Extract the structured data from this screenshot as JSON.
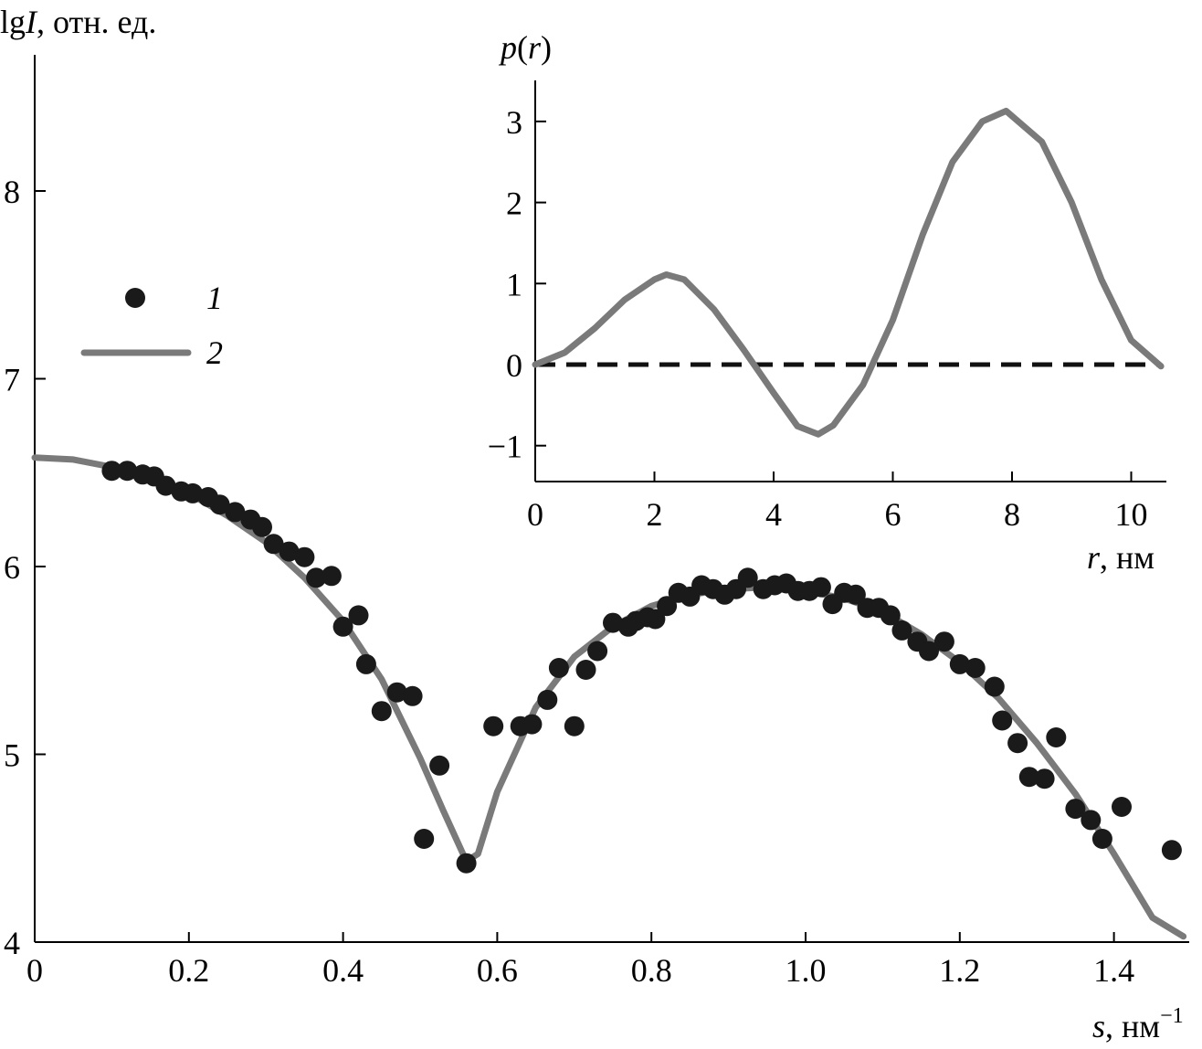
{
  "chart_data": [
    {
      "type": "scatter",
      "ylabel_prefix": "lg",
      "ylabel_var": "I",
      "ylabel_unit": ", отн. ед.",
      "xlabel_var": "s",
      "xlabel_unit": ", нм",
      "xlabel_exp": "−1",
      "xlim": [
        0,
        1.5
      ],
      "ylim": [
        4,
        8.6
      ],
      "x_ticks": [
        "0",
        "0.2",
        "0.4",
        "0.6",
        "0.8",
        "1.0",
        "1.2",
        "1.4"
      ],
      "y_ticks": [
        "4",
        "5",
        "6",
        "7",
        "8"
      ],
      "legend": {
        "position": "left",
        "entries": [
          "1",
          "2"
        ]
      },
      "series": [
        {
          "name": "1",
          "kind": "points",
          "color": "#1a1a1a",
          "points": [
            [
              0.1,
              6.51
            ],
            [
              0.12,
              6.51
            ],
            [
              0.14,
              6.49
            ],
            [
              0.155,
              6.48
            ],
            [
              0.17,
              6.43
            ],
            [
              0.19,
              6.4
            ],
            [
              0.205,
              6.39
            ],
            [
              0.225,
              6.37
            ],
            [
              0.24,
              6.33
            ],
            [
              0.26,
              6.29
            ],
            [
              0.28,
              6.25
            ],
            [
              0.295,
              6.21
            ],
            [
              0.31,
              6.12
            ],
            [
              0.33,
              6.08
            ],
            [
              0.35,
              6.05
            ],
            [
              0.365,
              5.94
            ],
            [
              0.385,
              5.95
            ],
            [
              0.4,
              5.68
            ],
            [
              0.42,
              5.74
            ],
            [
              0.43,
              5.48
            ],
            [
              0.45,
              5.23
            ],
            [
              0.47,
              5.33
            ],
            [
              0.49,
              5.31
            ],
            [
              0.505,
              4.55
            ],
            [
              0.525,
              4.94
            ],
            [
              0.56,
              4.42
            ],
            [
              0.595,
              5.15
            ],
            [
              0.63,
              5.15
            ],
            [
              0.645,
              5.16
            ],
            [
              0.665,
              5.29
            ],
            [
              0.68,
              5.46
            ],
            [
              0.7,
              5.15
            ],
            [
              0.715,
              5.45
            ],
            [
              0.73,
              5.55
            ],
            [
              0.75,
              5.7
            ],
            [
              0.77,
              5.68
            ],
            [
              0.78,
              5.71
            ],
            [
              0.795,
              5.73
            ],
            [
              0.805,
              5.72
            ],
            [
              0.82,
              5.79
            ],
            [
              0.835,
              5.86
            ],
            [
              0.85,
              5.84
            ],
            [
              0.865,
              5.9
            ],
            [
              0.88,
              5.88
            ],
            [
              0.895,
              5.85
            ],
            [
              0.91,
              5.88
            ],
            [
              0.925,
              5.94
            ],
            [
              0.945,
              5.88
            ],
            [
              0.96,
              5.9
            ],
            [
              0.975,
              5.91
            ],
            [
              0.99,
              5.87
            ],
            [
              1.005,
              5.87
            ],
            [
              1.02,
              5.89
            ],
            [
              1.035,
              5.8
            ],
            [
              1.05,
              5.86
            ],
            [
              1.065,
              5.85
            ],
            [
              1.08,
              5.78
            ],
            [
              1.095,
              5.78
            ],
            [
              1.11,
              5.74
            ],
            [
              1.125,
              5.66
            ],
            [
              1.145,
              5.6
            ],
            [
              1.16,
              5.55
            ],
            [
              1.18,
              5.6
            ],
            [
              1.2,
              5.48
            ],
            [
              1.22,
              5.46
            ],
            [
              1.245,
              5.36
            ],
            [
              1.255,
              5.18
            ],
            [
              1.275,
              5.06
            ],
            [
              1.29,
              4.88
            ],
            [
              1.31,
              4.87
            ],
            [
              1.325,
              5.09
            ],
            [
              1.35,
              4.71
            ],
            [
              1.37,
              4.65
            ],
            [
              1.385,
              4.55
            ],
            [
              1.41,
              4.72
            ],
            [
              1.475,
              4.49
            ]
          ]
        },
        {
          "name": "2",
          "kind": "line",
          "color": "#7a7a7a",
          "points": [
            [
              0.0,
              6.58
            ],
            [
              0.05,
              6.57
            ],
            [
              0.1,
              6.53
            ],
            [
              0.15,
              6.47
            ],
            [
              0.2,
              6.39
            ],
            [
              0.25,
              6.27
            ],
            [
              0.3,
              6.13
            ],
            [
              0.35,
              5.94
            ],
            [
              0.4,
              5.71
            ],
            [
              0.45,
              5.4
            ],
            [
              0.5,
              4.98
            ],
            [
              0.53,
              4.7
            ],
            [
              0.56,
              4.43
            ],
            [
              0.575,
              4.47
            ],
            [
              0.6,
              4.8
            ],
            [
              0.65,
              5.25
            ],
            [
              0.7,
              5.52
            ],
            [
              0.75,
              5.68
            ],
            [
              0.8,
              5.79
            ],
            [
              0.85,
              5.85
            ],
            [
              0.9,
              5.88
            ],
            [
              0.95,
              5.89
            ],
            [
              1.0,
              5.87
            ],
            [
              1.05,
              5.83
            ],
            [
              1.1,
              5.76
            ],
            [
              1.15,
              5.64
            ],
            [
              1.2,
              5.49
            ],
            [
              1.25,
              5.3
            ],
            [
              1.3,
              5.06
            ],
            [
              1.35,
              4.79
            ],
            [
              1.4,
              4.47
            ],
            [
              1.45,
              4.13
            ],
            [
              1.49,
              4.03
            ]
          ]
        }
      ]
    },
    {
      "type": "line",
      "ylabel_fn": "p",
      "ylabel_arg": "r",
      "xlabel_var": "r",
      "xlabel_unit": ", нм",
      "xlim": [
        0,
        10.5
      ],
      "ylim": [
        -1.5,
        3.5
      ],
      "x_ticks": [
        "0",
        "2",
        "4",
        "6",
        "8",
        "10"
      ],
      "y_ticks": [
        "−1",
        "0",
        "1",
        "2",
        "3"
      ],
      "series": [
        {
          "kind": "line",
          "color": "#7a7a7a",
          "points": [
            [
              0.0,
              0.0
            ],
            [
              0.5,
              0.15
            ],
            [
              1.0,
              0.45
            ],
            [
              1.5,
              0.8
            ],
            [
              2.0,
              1.05
            ],
            [
              2.2,
              1.11
            ],
            [
              2.5,
              1.05
            ],
            [
              3.0,
              0.68
            ],
            [
              3.5,
              0.18
            ],
            [
              4.0,
              -0.35
            ],
            [
              4.4,
              -0.76
            ],
            [
              4.75,
              -0.86
            ],
            [
              5.0,
              -0.75
            ],
            [
              5.5,
              -0.25
            ],
            [
              6.0,
              0.55
            ],
            [
              6.5,
              1.6
            ],
            [
              7.0,
              2.5
            ],
            [
              7.5,
              3.0
            ],
            [
              7.9,
              3.13
            ],
            [
              8.5,
              2.75
            ],
            [
              9.0,
              2.0
            ],
            [
              9.5,
              1.05
            ],
            [
              10.0,
              0.3
            ],
            [
              10.5,
              -0.02
            ]
          ]
        },
        {
          "kind": "dashed-line",
          "color": "#111111",
          "points": [
            [
              0.0,
              0.0
            ],
            [
              10.5,
              0.0
            ]
          ]
        }
      ]
    }
  ]
}
